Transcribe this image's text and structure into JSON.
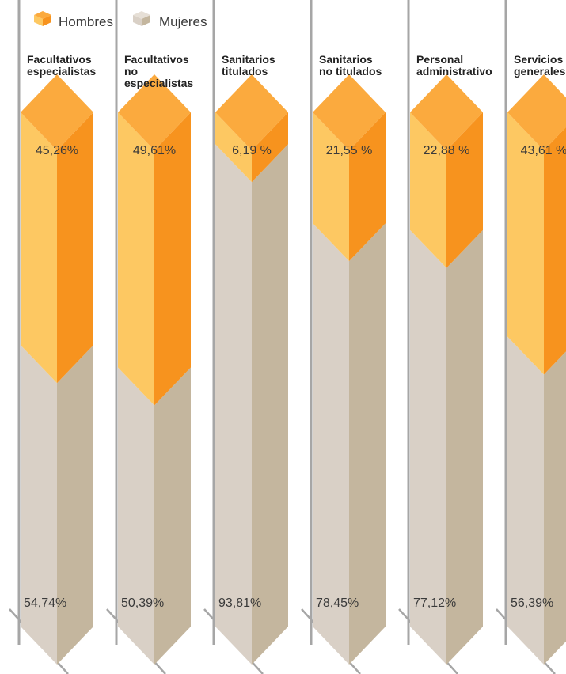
{
  "chart_data": {
    "type": "bar",
    "stacked": true,
    "legend": {
      "placement": "top-left"
    },
    "categories": [
      [
        "Facultativos",
        "especialistas"
      ],
      [
        "Facultativos",
        "no",
        "especialistas"
      ],
      [
        "Sanitarios",
        "titulados"
      ],
      [
        "Sanitarios",
        "no titulados"
      ],
      [
        "Personal",
        "administrativo"
      ],
      [
        "Servicios",
        "generales"
      ]
    ],
    "series": [
      {
        "name": "Hombres",
        "values": [
          45.26,
          49.61,
          6.19,
          21.55,
          22.88,
          43.61
        ],
        "labels": [
          "45,26%",
          "49,61%",
          "6,19 %",
          "21,55 %",
          "22,88 %",
          "43,61 %"
        ]
      },
      {
        "name": "Mujeres",
        "values": [
          54.74,
          50.39,
          93.81,
          78.45,
          77.12,
          56.39
        ],
        "labels": [
          "54,74%",
          "50,39%",
          "93,81%",
          "78,45%",
          "77,12%",
          "56,39%"
        ]
      }
    ],
    "ylim": [
      0,
      100
    ],
    "colors": {
      "hombres_top": "#FBAA3E",
      "hombres_left": "#FDC862",
      "hombres_right": "#F7931E",
      "mujeres_left": "#D9D0C6",
      "mujeres_right": "#C4B69E",
      "axis_line": "#A6A6A6"
    }
  }
}
